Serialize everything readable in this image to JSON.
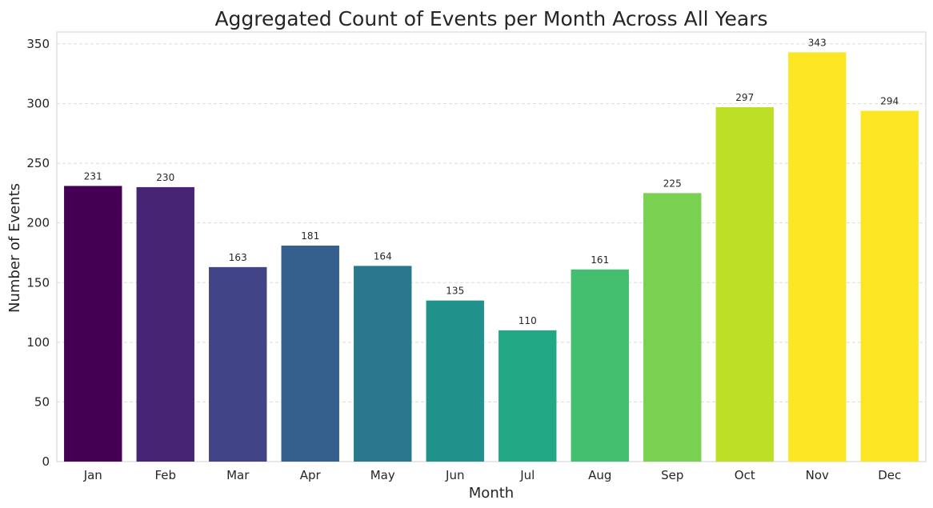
{
  "chart_data": {
    "type": "bar",
    "title": "Aggregated Count of Events per Month Across All Years",
    "xlabel": "Month",
    "ylabel": "Number of Events",
    "categories": [
      "Jan",
      "Feb",
      "Mar",
      "Apr",
      "May",
      "Jun",
      "Jul",
      "Aug",
      "Sep",
      "Oct",
      "Nov",
      "Dec"
    ],
    "values": [
      231,
      230,
      163,
      181,
      164,
      135,
      110,
      161,
      225,
      297,
      343,
      294
    ],
    "data_labels": [
      "231",
      "230",
      "163",
      "181",
      "164",
      "135",
      "110",
      "161",
      "225",
      "297",
      "343",
      "294"
    ],
    "ylim": [
      0,
      360
    ],
    "yticks": [
      0,
      50,
      100,
      150,
      200,
      250,
      300,
      350
    ],
    "grid": "y-dashed",
    "colors": [
      "#440154",
      "#482475",
      "#414487",
      "#355f8d",
      "#2a788e",
      "#21918c",
      "#22a884",
      "#44bf70",
      "#7ad151",
      "#bddf26",
      "#fde725",
      "#fde725"
    ]
  }
}
